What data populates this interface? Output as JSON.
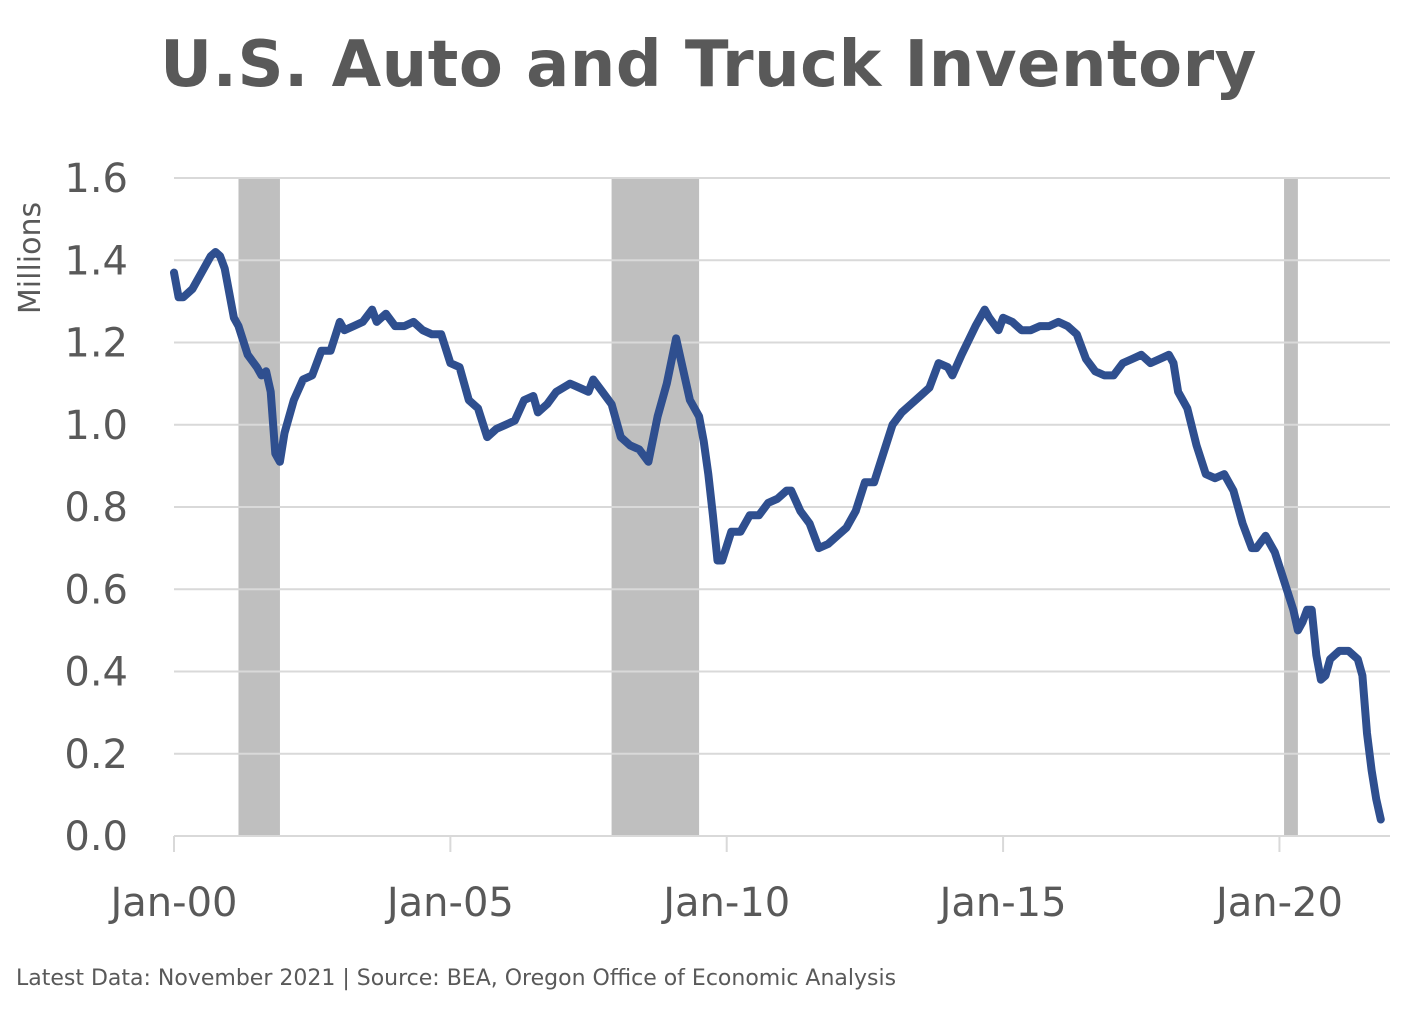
{
  "chart_data": {
    "type": "line",
    "title": "U.S. Auto and Truck Inventory",
    "ylabel": "Millions",
    "xlabel": "",
    "ylim": [
      0,
      1.6
    ],
    "x_range": [
      "2000-01",
      "2021-11"
    ],
    "y_ticks": [
      "0.0",
      "0.2",
      "0.4",
      "0.6",
      "0.8",
      "1.0",
      "1.2",
      "1.4",
      "1.6"
    ],
    "x_ticks": [
      {
        "label": "Jan-00",
        "date": "2000-01"
      },
      {
        "label": "Jan-05",
        "date": "2005-01"
      },
      {
        "label": "Jan-10",
        "date": "2010-01"
      },
      {
        "label": "Jan-15",
        "date": "2015-01"
      },
      {
        "label": "Jan-20",
        "date": "2020-01"
      }
    ],
    "grid": true,
    "legend": "none",
    "recession_shading": [
      {
        "start": "2001-03",
        "end": "2001-11"
      },
      {
        "start": "2007-12",
        "end": "2009-06"
      },
      {
        "start": "2020-02",
        "end": "2020-04"
      }
    ],
    "colors": {
      "line": "#2F4F8F",
      "recession": "#BFBFBF",
      "grid": "#D9D9D9",
      "text": "#595959"
    },
    "series": [
      {
        "points": [
          [
            "2000-01",
            1.37
          ],
          [
            "2000-02",
            1.31
          ],
          [
            "2000-03",
            1.31
          ],
          [
            "2000-05",
            1.33
          ],
          [
            "2000-07",
            1.37
          ],
          [
            "2000-09",
            1.41
          ],
          [
            "2000-10",
            1.42
          ],
          [
            "2000-11",
            1.41
          ],
          [
            "2000-12",
            1.38
          ],
          [
            "2001-02",
            1.26
          ],
          [
            "2001-03",
            1.24
          ],
          [
            "2001-05",
            1.17
          ],
          [
            "2001-07",
            1.14
          ],
          [
            "2001-08",
            1.12
          ],
          [
            "2001-09",
            1.13
          ],
          [
            "2001-10",
            1.08
          ],
          [
            "2001-11",
            0.93
          ],
          [
            "2001-12",
            0.91
          ],
          [
            "2002-01",
            0.98
          ],
          [
            "2002-03",
            1.06
          ],
          [
            "2002-05",
            1.11
          ],
          [
            "2002-07",
            1.12
          ],
          [
            "2002-09",
            1.18
          ],
          [
            "2002-11",
            1.18
          ],
          [
            "2003-01",
            1.25
          ],
          [
            "2003-02",
            1.23
          ],
          [
            "2003-04",
            1.24
          ],
          [
            "2003-06",
            1.25
          ],
          [
            "2003-08",
            1.28
          ],
          [
            "2003-09",
            1.25
          ],
          [
            "2003-11",
            1.27
          ],
          [
            "2004-01",
            1.24
          ],
          [
            "2004-03",
            1.24
          ],
          [
            "2004-05",
            1.25
          ],
          [
            "2004-07",
            1.23
          ],
          [
            "2004-09",
            1.22
          ],
          [
            "2004-11",
            1.22
          ],
          [
            "2005-01",
            1.15
          ],
          [
            "2005-03",
            1.14
          ],
          [
            "2005-05",
            1.06
          ],
          [
            "2005-07",
            1.04
          ],
          [
            "2005-09",
            0.97
          ],
          [
            "2005-11",
            0.99
          ],
          [
            "2006-01",
            1.0
          ],
          [
            "2006-03",
            1.01
          ],
          [
            "2006-05",
            1.06
          ],
          [
            "2006-07",
            1.07
          ],
          [
            "2006-08",
            1.03
          ],
          [
            "2006-10",
            1.05
          ],
          [
            "2006-12",
            1.08
          ],
          [
            "2007-03",
            1.1
          ],
          [
            "2007-05",
            1.09
          ],
          [
            "2007-07",
            1.08
          ],
          [
            "2007-08",
            1.11
          ],
          [
            "2007-10",
            1.08
          ],
          [
            "2007-12",
            1.05
          ],
          [
            "2008-02",
            0.97
          ],
          [
            "2008-04",
            0.95
          ],
          [
            "2008-06",
            0.94
          ],
          [
            "2008-08",
            0.91
          ],
          [
            "2008-10",
            1.02
          ],
          [
            "2008-12",
            1.1
          ],
          [
            "2009-02",
            1.21
          ],
          [
            "2009-03",
            1.16
          ],
          [
            "2009-05",
            1.06
          ],
          [
            "2009-07",
            1.02
          ],
          [
            "2009-08",
            0.96
          ],
          [
            "2009-09",
            0.88
          ],
          [
            "2009-10",
            0.78
          ],
          [
            "2009-11",
            0.67
          ],
          [
            "2009-12",
            0.67
          ],
          [
            "2010-02",
            0.74
          ],
          [
            "2010-04",
            0.74
          ],
          [
            "2010-06",
            0.78
          ],
          [
            "2010-08",
            0.78
          ],
          [
            "2010-10",
            0.81
          ],
          [
            "2010-12",
            0.82
          ],
          [
            "2011-02",
            0.84
          ],
          [
            "2011-03",
            0.84
          ],
          [
            "2011-05",
            0.79
          ],
          [
            "2011-07",
            0.76
          ],
          [
            "2011-09",
            0.7
          ],
          [
            "2011-11",
            0.71
          ],
          [
            "2012-01",
            0.73
          ],
          [
            "2012-03",
            0.75
          ],
          [
            "2012-05",
            0.79
          ],
          [
            "2012-07",
            0.86
          ],
          [
            "2012-09",
            0.86
          ],
          [
            "2012-11",
            0.93
          ],
          [
            "2013-01",
            1.0
          ],
          [
            "2013-03",
            1.03
          ],
          [
            "2013-05",
            1.05
          ],
          [
            "2013-07",
            1.07
          ],
          [
            "2013-09",
            1.09
          ],
          [
            "2013-11",
            1.15
          ],
          [
            "2014-01",
            1.14
          ],
          [
            "2014-02",
            1.12
          ],
          [
            "2014-04",
            1.17
          ],
          [
            "2014-07",
            1.24
          ],
          [
            "2014-09",
            1.28
          ],
          [
            "2014-10",
            1.26
          ],
          [
            "2014-12",
            1.23
          ],
          [
            "2015-01",
            1.26
          ],
          [
            "2015-03",
            1.25
          ],
          [
            "2015-05",
            1.23
          ],
          [
            "2015-07",
            1.23
          ],
          [
            "2015-09",
            1.24
          ],
          [
            "2015-11",
            1.24
          ],
          [
            "2016-01",
            1.25
          ],
          [
            "2016-03",
            1.24
          ],
          [
            "2016-05",
            1.22
          ],
          [
            "2016-07",
            1.16
          ],
          [
            "2016-09",
            1.13
          ],
          [
            "2016-11",
            1.12
          ],
          [
            "2017-01",
            1.12
          ],
          [
            "2017-03",
            1.15
          ],
          [
            "2017-05",
            1.16
          ],
          [
            "2017-07",
            1.17
          ],
          [
            "2017-09",
            1.15
          ],
          [
            "2017-11",
            1.16
          ],
          [
            "2018-01",
            1.17
          ],
          [
            "2018-02",
            1.15
          ],
          [
            "2018-03",
            1.08
          ],
          [
            "2018-05",
            1.04
          ],
          [
            "2018-07",
            0.95
          ],
          [
            "2018-09",
            0.88
          ],
          [
            "2018-11",
            0.87
          ],
          [
            "2019-01",
            0.88
          ],
          [
            "2019-03",
            0.84
          ],
          [
            "2019-05",
            0.76
          ],
          [
            "2019-07",
            0.7
          ],
          [
            "2019-08",
            0.7
          ],
          [
            "2019-10",
            0.73
          ],
          [
            "2019-12",
            0.69
          ],
          [
            "2020-02",
            0.62
          ],
          [
            "2020-04",
            0.55
          ],
          [
            "2020-05",
            0.5
          ],
          [
            "2020-06",
            0.52
          ],
          [
            "2020-07",
            0.55
          ],
          [
            "2020-08",
            0.55
          ],
          [
            "2020-09",
            0.44
          ],
          [
            "2020-10",
            0.38
          ],
          [
            "2020-11",
            0.39
          ],
          [
            "2020-12",
            0.43
          ],
          [
            "2021-02",
            0.45
          ],
          [
            "2021-04",
            0.45
          ],
          [
            "2021-06",
            0.43
          ],
          [
            "2021-07",
            0.39
          ],
          [
            "2021-08",
            0.25
          ],
          [
            "2021-09",
            0.16
          ],
          [
            "2021-10",
            0.09
          ],
          [
            "2021-11",
            0.04
          ]
        ]
      }
    ]
  },
  "footer": {
    "note": "Latest Data: November 2021  |  Source: BEA, Oregon Office of Economic Analysis"
  }
}
